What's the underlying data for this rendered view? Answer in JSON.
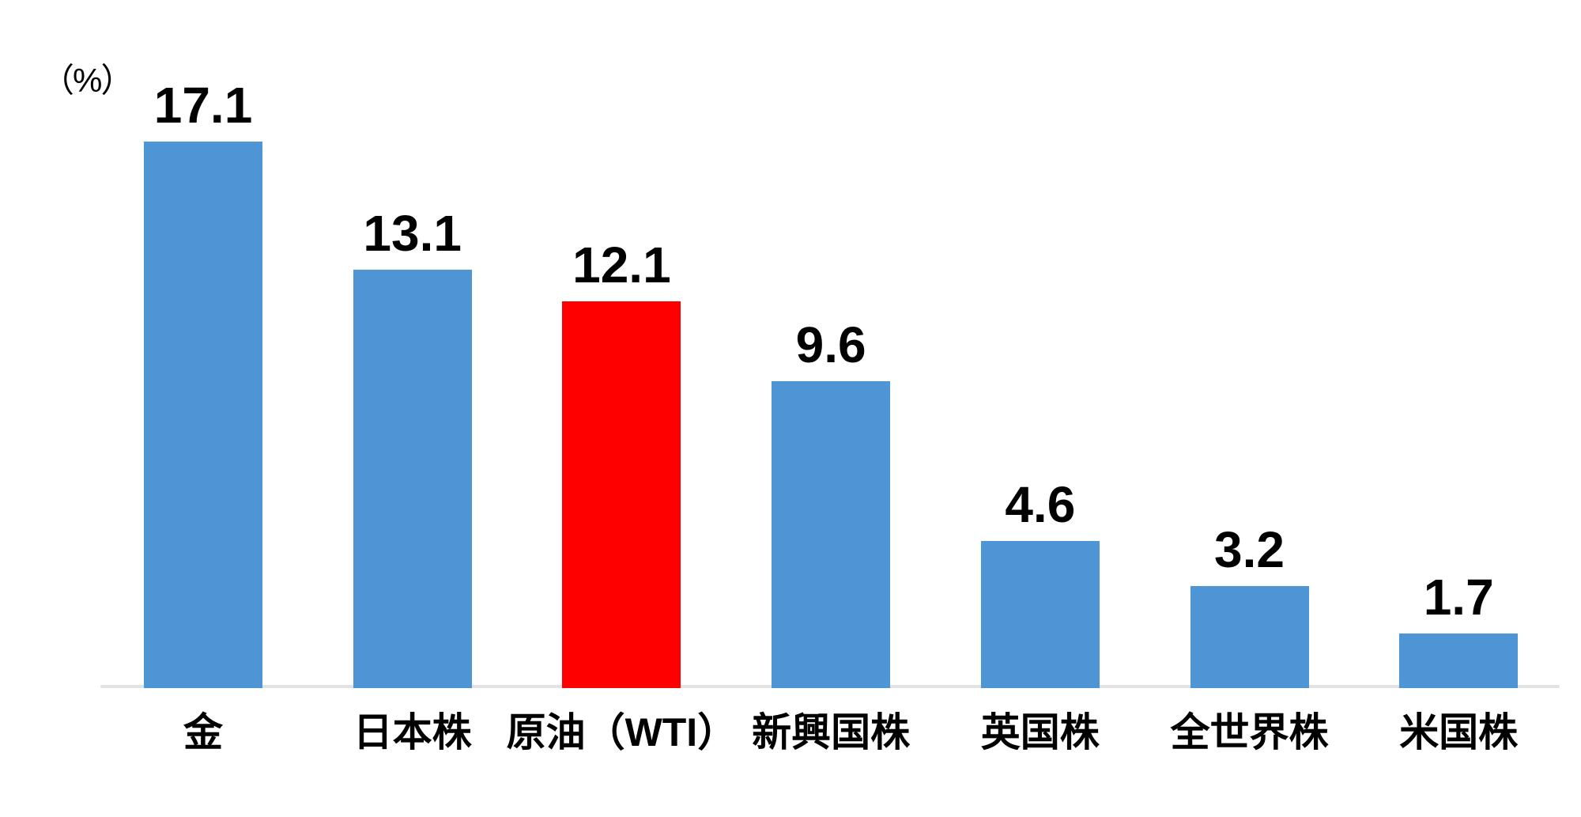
{
  "chart_data": {
    "type": "bar",
    "title": "",
    "unit_label": "（%）",
    "categories": [
      "金",
      "日本株",
      "原油（WTI）",
      "新興国株",
      "英国株",
      "全世界株",
      "米国株"
    ],
    "values": [
      17.1,
      13.1,
      12.1,
      9.6,
      4.6,
      3.2,
      1.7
    ],
    "value_labels": [
      "17.1",
      "13.1",
      "12.1",
      "9.6",
      "4.6",
      "3.2",
      "1.7"
    ],
    "highlight_index": 2,
    "xlabel": "",
    "ylabel": "%",
    "ylim": [
      0,
      18
    ],
    "grid": false,
    "legend": false,
    "colors": {
      "bar_default": "#4E95D5",
      "bar_highlight": "#FF0000",
      "axis_line": "#E2E2E2",
      "text": "#000000",
      "background": "#FFFFFF"
    }
  }
}
